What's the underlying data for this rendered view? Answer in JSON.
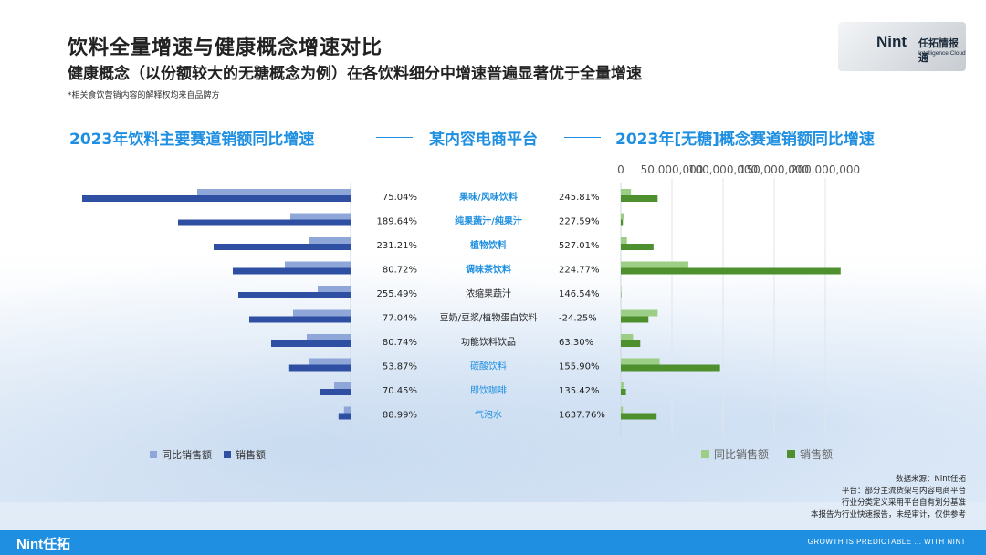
{
  "header": {
    "title": "饮料全量增速与健康概念增速对比",
    "subtitle": "健康概念（以份额较大的无糖概念为例）在各饮料细分中增速普遍显著优于全量增速",
    "note": "*相关食饮营销内容的解释权均来自品牌方"
  },
  "logo": {
    "word": "Nint",
    "cn": "任拓情报通",
    "en": "Intelligence Cloud"
  },
  "sections": {
    "left": "2023年饮料主要赛道销额同比增速",
    "center": "某内容电商平台",
    "right": "2023年[无糖]概念赛道销额同比增速"
  },
  "colors": {
    "left_yoy": "#8ea7d8",
    "left_sales": "#2f4fa3",
    "right_yoy": "#9ccf85",
    "right_sales": "#4e8f2e",
    "highlight": "#1e8fe1",
    "accent": "#1e8fe1"
  },
  "chart_data": [
    {
      "type": "bar",
      "orientation": "horizontal",
      "title": "2023年饮料主要赛道销额同比增速",
      "categories": [
        "果味/风味饮料",
        "纯果蔬汁/纯果汁",
        "植物饮料",
        "调味茶饮料",
        "浓缩果蔬汁",
        "豆奶/豆浆/植物蛋白饮料",
        "功能饮料饮品",
        "碳酸饮料",
        "即饮咖啡",
        "气泡水"
      ],
      "series": [
        {
          "name": "同比销售额",
          "values": [
            280000000,
            110000000,
            75000000,
            120000000,
            60000000,
            105000000,
            80000000,
            75000000,
            30000000,
            12000000
          ]
        },
        {
          "name": "销售额",
          "values": [
            490000000,
            315000000,
            250000000,
            215000000,
            205000000,
            185000000,
            145000000,
            112000000,
            55000000,
            22000000
          ]
        }
      ],
      "growth_labels": [
        "75.04%",
        "189.64%",
        "231.21%",
        "80.72%",
        "255.49%",
        "77.04%",
        "80.74%",
        "53.87%",
        "70.45%",
        "88.99%"
      ],
      "ticks": [
        "1,500,000,000",
        "1,000,000,000"
      ],
      "tick_values": [
        1500000000,
        1000000000
      ],
      "legend": "bottom"
    },
    {
      "type": "bar",
      "orientation": "horizontal",
      "title": "2023年[无糖]概念赛道销额同比增速",
      "categories": [
        "果味/风味饮料",
        "纯果蔬汁/纯果汁",
        "植物饮料",
        "调味茶饮料",
        "浓缩果蔬汁",
        "豆奶/豆浆/植物蛋白饮料",
        "功能饮料饮品",
        "碳酸饮料",
        "即饮咖啡",
        "气泡水"
      ],
      "series": [
        {
          "name": "同比销售额",
          "values": [
            10000000,
            3000000,
            6000000,
            66000000,
            500000,
            36000000,
            12000000,
            38000000,
            3000000,
            2000000
          ]
        },
        {
          "name": "销售额",
          "values": [
            36000000,
            2000000,
            32000000,
            215000000,
            400000,
            27000000,
            19000000,
            97000000,
            5000000,
            35000000
          ]
        }
      ],
      "growth_labels": [
        "245.81%",
        "227.59%",
        "527.01%",
        "224.77%",
        "146.54%",
        "-24.25%",
        "63.30%",
        "155.90%",
        "135.42%",
        "1637.76%"
      ],
      "ticks": [
        "0",
        "50,000,000",
        "100,000,000",
        "150,000,000",
        "200,000,000"
      ],
      "tick_values": [
        0,
        50000000,
        100000000,
        150000000,
        200000000
      ],
      "legend": "bottom"
    }
  ],
  "category_styles": [
    "highlight-bold",
    "highlight-bold",
    "highlight-bold",
    "highlight-bold",
    "normal",
    "normal",
    "normal",
    "highlight-light",
    "highlight-light",
    "highlight-light"
  ],
  "legend": {
    "yoy": "同比销售额",
    "sales": "销售额"
  },
  "source": {
    "line1": "数据来源：Nint任拓",
    "line2": "平台：部分主流货架与内容电商平台",
    "line3": "行业分类定义采用平台自有划分基准",
    "line4": "本报告为行业快速报告，未经审计，仅供参考"
  },
  "footer": {
    "brand": "Nint任拓",
    "slogan": "GROWTH IS PREDICTABLE ... WITH NINT"
  }
}
